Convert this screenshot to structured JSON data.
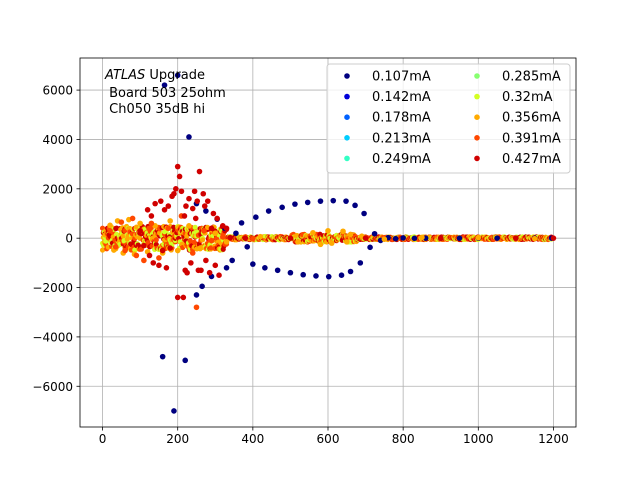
{
  "chart_data": {
    "type": "scatter",
    "title": "",
    "xlabel": "",
    "ylabel": "",
    "xlim": [
      -60,
      1260
    ],
    "ylim": [
      -7650,
      7300
    ],
    "xticks": [
      0,
      200,
      400,
      600,
      800,
      1000,
      1200
    ],
    "yticks": [
      -6000,
      -4000,
      -2000,
      0,
      2000,
      4000,
      6000
    ],
    "xtick_labels": [
      "0",
      "200",
      "400",
      "600",
      "800",
      "1000",
      "1200"
    ],
    "ytick_labels": [
      "−6000",
      "−4000",
      "−2000",
      "0",
      "2000",
      "4000",
      "6000"
    ],
    "grid": true,
    "legend": {
      "placement": "top-right",
      "columns": 2
    },
    "annotation": {
      "line1_italic": "ATLAS",
      "line1_rest": " Upgrade",
      "line2": " Board 503 25ohm",
      "line3": " Ch050 35dB hi"
    },
    "series": [
      {
        "name": "0.107mA",
        "color": "#000080",
        "points": [
          [
            160,
            -4800
          ],
          [
            165,
            6200
          ],
          [
            190,
            -7000
          ],
          [
            200,
            6600
          ],
          [
            220,
            -4950
          ],
          [
            230,
            4100
          ],
          [
            250,
            -2300
          ],
          [
            250,
            1400
          ],
          [
            265,
            -1950
          ],
          [
            275,
            1100
          ],
          [
            290,
            -1550
          ],
          [
            305,
            770
          ],
          [
            325,
            400
          ],
          [
            330,
            -1200
          ],
          [
            345,
            -900
          ],
          [
            355,
            200
          ],
          [
            370,
            620
          ],
          [
            385,
            -350
          ],
          [
            400,
            -1050
          ],
          [
            408,
            850
          ],
          [
            432,
            -1200
          ],
          [
            442,
            1100
          ],
          [
            466,
            -1300
          ],
          [
            478,
            1250
          ],
          [
            500,
            -1400
          ],
          [
            512,
            1380
          ],
          [
            534,
            -1480
          ],
          [
            546,
            1450
          ],
          [
            568,
            -1530
          ],
          [
            580,
            1500
          ],
          [
            602,
            -1560
          ],
          [
            614,
            1520
          ],
          [
            636,
            -1500
          ],
          [
            648,
            1500
          ],
          [
            660,
            -1350
          ],
          [
            672,
            1330
          ],
          [
            686,
            -1000
          ],
          [
            696,
            1000
          ],
          [
            712,
            -370
          ],
          [
            724,
            180
          ],
          [
            740,
            -90
          ],
          [
            760,
            20
          ],
          [
            780,
            -20
          ],
          [
            800,
            10
          ],
          [
            830,
            -5
          ],
          [
            860,
            0
          ],
          [
            900,
            0
          ],
          [
            950,
            0
          ],
          [
            1000,
            0
          ],
          [
            1050,
            0
          ],
          [
            1100,
            0
          ],
          [
            1150,
            0
          ],
          [
            1195,
            0
          ]
        ]
      },
      {
        "name": "0.142mA",
        "color": "#0000d9",
        "points": []
      },
      {
        "name": "0.178mA",
        "color": "#0061ff",
        "points": []
      },
      {
        "name": "0.213mA",
        "color": "#00cdff",
        "points": []
      },
      {
        "name": "0.249mA",
        "color": "#33ffc4",
        "points": []
      },
      {
        "name": "0.285mA",
        "color": "#87ff70",
        "points": []
      },
      {
        "name": "0.32mA",
        "color": "#d3ff23",
        "points": []
      },
      {
        "name": "0.356mA",
        "color": "#ffaa00",
        "points": [
          [
            20,
            520
          ],
          [
            30,
            -480
          ],
          [
            40,
            700
          ],
          [
            55,
            -600
          ],
          [
            70,
            750
          ],
          [
            85,
            -650
          ],
          [
            100,
            600
          ],
          [
            120,
            -550
          ],
          [
            140,
            500
          ],
          [
            160,
            -600
          ],
          [
            180,
            700
          ],
          [
            200,
            -500
          ],
          [
            230,
            500
          ],
          [
            260,
            -400
          ],
          [
            300,
            200
          ],
          [
            330,
            -150
          ],
          [
            420,
            60
          ],
          [
            520,
            -150
          ],
          [
            560,
            220
          ],
          [
            580,
            -250
          ],
          [
            600,
            300
          ],
          [
            610,
            -200
          ],
          [
            640,
            280
          ],
          [
            650,
            -150
          ],
          [
            660,
            150
          ],
          [
            690,
            80
          ],
          [
            750,
            -40
          ],
          [
            850,
            30
          ],
          [
            1000,
            20
          ],
          [
            1150,
            -20
          ]
        ]
      },
      {
        "name": "0.391mA",
        "color": "#ff4800",
        "points": [
          [
            20,
            300
          ],
          [
            35,
            -350
          ],
          [
            50,
            650
          ],
          [
            60,
            -500
          ],
          [
            80,
            800
          ],
          [
            90,
            -700
          ],
          [
            110,
            -900
          ],
          [
            130,
            600
          ],
          [
            150,
            -800
          ],
          [
            175,
            400
          ],
          [
            210,
            900
          ],
          [
            240,
            -600
          ],
          [
            250,
            -2800
          ],
          [
            270,
            300
          ],
          [
            290,
            -100
          ],
          [
            320,
            50
          ],
          [
            400,
            -20
          ],
          [
            700,
            10
          ],
          [
            1100,
            0
          ]
        ]
      },
      {
        "name": "0.427mA",
        "color": "#d00000",
        "points": [
          [
            100,
            300
          ],
          [
            110,
            -300
          ],
          [
            120,
            1150
          ],
          [
            125,
            -700
          ],
          [
            130,
            900
          ],
          [
            135,
            -1000
          ],
          [
            140,
            1400
          ],
          [
            150,
            -1100
          ],
          [
            155,
            1500
          ],
          [
            160,
            -500
          ],
          [
            165,
            1150
          ],
          [
            170,
            -1200
          ],
          [
            175,
            1300
          ],
          [
            180,
            -400
          ],
          [
            185,
            1700
          ],
          [
            190,
            1800
          ],
          [
            195,
            2000
          ],
          [
            200,
            2900
          ],
          [
            200,
            -2400
          ],
          [
            205,
            2500
          ],
          [
            210,
            1900
          ],
          [
            215,
            -2400
          ],
          [
            218,
            900
          ],
          [
            220,
            -1300
          ],
          [
            222,
            1300
          ],
          [
            225,
            -1400
          ],
          [
            230,
            1600
          ],
          [
            235,
            -1000
          ],
          [
            240,
            1200
          ],
          [
            245,
            1900
          ],
          [
            248,
            800
          ],
          [
            252,
            1500
          ],
          [
            255,
            -1300
          ],
          [
            258,
            2700
          ],
          [
            262,
            -1300
          ],
          [
            268,
            1800
          ],
          [
            272,
            1300
          ],
          [
            275,
            -900
          ],
          [
            280,
            1500
          ],
          [
            285,
            -1400
          ],
          [
            290,
            400
          ],
          [
            295,
            1000
          ],
          [
            300,
            -1100
          ],
          [
            305,
            800
          ],
          [
            310,
            -1500
          ],
          [
            320,
            500
          ],
          [
            330,
            400
          ],
          [
            340,
            20
          ],
          [
            380,
            0
          ],
          [
            500,
            0
          ],
          [
            700,
            0
          ],
          [
            900,
            0
          ],
          [
            1100,
            0
          ],
          [
            1200,
            0
          ]
        ]
      }
    ]
  }
}
